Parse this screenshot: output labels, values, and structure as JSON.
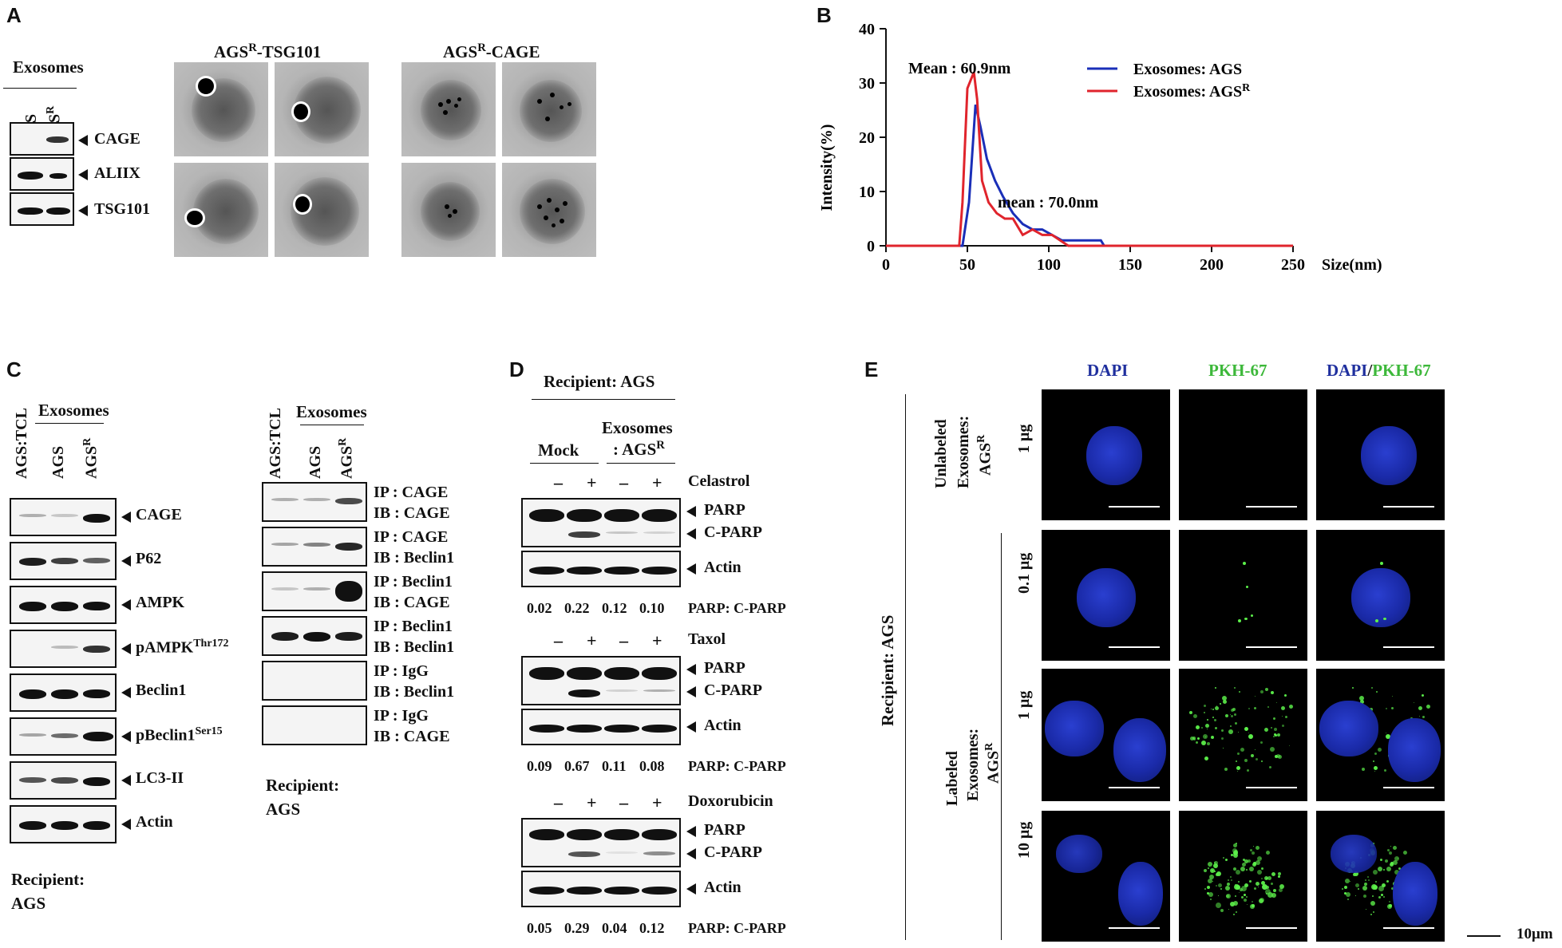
{
  "panels": {
    "A": "A",
    "B": "B",
    "C": "C",
    "D": "D",
    "E": "E"
  },
  "panelA": {
    "header": "Exosomes",
    "lanes": [
      "AGS",
      "AGS"
    ],
    "lane_sup": "R",
    "bands": [
      "CAGE",
      "ALIIX",
      "TSG101"
    ],
    "em_titles": [
      {
        "main": "AGS",
        "sup": "R",
        "rest": "-TSG101"
      },
      {
        "main": "AGS",
        "sup": "R",
        "rest": "-CAGE"
      }
    ]
  },
  "panelB": {
    "chart_data": {
      "type": "line",
      "xlabel": "Size(nm)",
      "ylabel": "Intensity(%)",
      "xlim": [
        0,
        250
      ],
      "ylim": [
        0,
        40
      ],
      "xticks": [
        0,
        50,
        100,
        150,
        200,
        250
      ],
      "yticks": [
        0,
        10,
        20,
        30,
        40
      ],
      "legend_position": "top-right",
      "annotations": [
        "Mean : 60.9nm",
        "mean : 70.0nm"
      ],
      "series": [
        {
          "name": "Exosomes: AGS",
          "color": "#1a2fb8",
          "x": [
            0,
            45,
            47,
            51,
            55,
            58,
            62,
            67,
            72,
            78,
            84,
            90,
            96,
            102,
            108,
            114,
            120,
            126,
            132,
            134,
            250
          ],
          "y": [
            0,
            0,
            0,
            8,
            26,
            22,
            16,
            12,
            9,
            6,
            4,
            3,
            3,
            2,
            1,
            1,
            1,
            1,
            1,
            0,
            0
          ]
        },
        {
          "name": "Exosomes: AGS",
          "name_sup": "R",
          "color": "#e0242c",
          "x": [
            0,
            45,
            47,
            50,
            54,
            56,
            59,
            63,
            68,
            73,
            78,
            84,
            90,
            96,
            102,
            107,
            112,
            250
          ],
          "y": [
            0,
            0,
            8,
            29,
            32,
            27,
            12,
            8,
            6,
            5,
            5,
            2,
            3,
            2,
            2,
            1,
            0,
            0
          ]
        }
      ]
    }
  },
  "panelC": {
    "left": {
      "lanes": [
        "AGS:TCL",
        "AGS",
        "AGS"
      ],
      "lane_sup": [
        "",
        "",
        "R"
      ],
      "header": "Exosomes",
      "bands": [
        {
          "label": "CAGE"
        },
        {
          "label": "P62"
        },
        {
          "label": "AMPK"
        },
        {
          "label": "pAMPK",
          "sup": "Thr172"
        },
        {
          "label": "Beclin1"
        },
        {
          "label": "pBeclin1",
          "sup": "Ser15"
        },
        {
          "label": "LC3-II"
        },
        {
          "label": "Actin"
        }
      ],
      "recipient": [
        "Recipient:",
        "AGS"
      ]
    },
    "right": {
      "lanes": [
        "AGS:TCL",
        "AGS",
        "AGS"
      ],
      "lane_sup": [
        "",
        "",
        "R"
      ],
      "header": "Exosomes",
      "rows": [
        [
          "IP : CAGE",
          "IB : CAGE"
        ],
        [
          "IP : CAGE",
          "IB : Beclin1"
        ],
        [
          "IP : Beclin1",
          "IB : CAGE"
        ],
        [
          "IP : Beclin1",
          "IB : Beclin1"
        ],
        [
          "IP : IgG",
          "IB : Beclin1"
        ],
        [
          "IP : IgG",
          "IB : CAGE"
        ]
      ],
      "recipient": [
        "Recipient:",
        "AGS"
      ]
    }
  },
  "panelD": {
    "recipient": "Recipient: AGS",
    "groups": [
      "Mock",
      "Exosomes",
      ": AGS"
    ],
    "group_sup": "R",
    "signs": [
      "–",
      "+",
      "–",
      "+"
    ],
    "drugs": [
      {
        "name": "Celastrol",
        "ratios": [
          "0.02",
          "0.22",
          "0.12",
          "0.10"
        ]
      },
      {
        "name": "Taxol",
        "ratios": [
          "0.09",
          "0.67",
          "0.11",
          "0.08"
        ]
      },
      {
        "name": "Doxorubicin",
        "ratios": [
          "0.05",
          "0.29",
          "0.04",
          "0.12"
        ]
      }
    ],
    "band_labels": [
      "PARP",
      "C-PARP",
      "Actin"
    ],
    "ratio_label": "PARP: C-PARP"
  },
  "panelE": {
    "columns": [
      "DAPI",
      "PKH-67",
      "DAPI",
      "/",
      "PKH-67"
    ],
    "colors": {
      "dapi": "#1f2f9e",
      "pkh": "#3db83a"
    },
    "recipient": "Recipient: AGS",
    "unlabeled": [
      "Unlabeled",
      "Exosomes:",
      "AGS"
    ],
    "labeled": [
      "Labeled",
      "Exosomes:",
      "AGS"
    ],
    "sup": "R",
    "doses": [
      "1 μg",
      "0.1 μg",
      "1 μg",
      "10 μg"
    ],
    "scale": "10μm"
  }
}
